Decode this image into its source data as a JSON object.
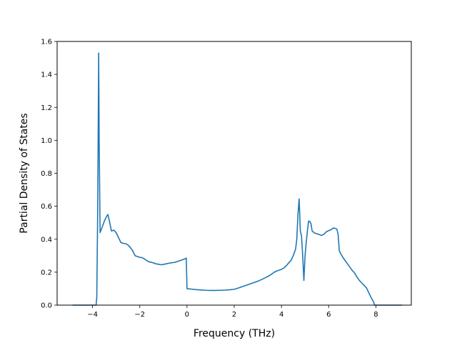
{
  "chart_data": {
    "type": "line",
    "xlabel": "Frequency (THz)",
    "ylabel": "Partial Density of States",
    "xlim": [
      -5.5,
      9.5
    ],
    "ylim": [
      0,
      1.6
    ],
    "xticks": [
      -4,
      -2,
      0,
      2,
      4,
      6,
      8
    ],
    "yticks": [
      0.0,
      0.2,
      0.4,
      0.6,
      0.8,
      1.0,
      1.2,
      1.4,
      1.6
    ],
    "xtick_labels": [
      "−4",
      "−2",
      "0",
      "2",
      "4",
      "6",
      "8"
    ],
    "ytick_labels": [
      "0.0",
      "0.2",
      "0.4",
      "0.6",
      "0.8",
      "1.0",
      "1.2",
      "1.4",
      "1.6"
    ],
    "grid": false,
    "series": [
      {
        "color": "#1f77b4",
        "x": [
          -4.85,
          -3.85,
          -3.82,
          -3.78,
          -3.74,
          -3.72,
          -3.68,
          -3.6,
          -3.5,
          -3.4,
          -3.35,
          -3.3,
          -3.2,
          -3.1,
          -3.0,
          -2.9,
          -2.8,
          -2.7,
          -2.6,
          -2.5,
          -2.4,
          -2.3,
          -2.2,
          -2.1,
          -2.0,
          -1.9,
          -1.8,
          -1.7,
          -1.6,
          -1.5,
          -1.4,
          -1.3,
          -1.2,
          -1.1,
          -1.0,
          -0.9,
          -0.8,
          -0.7,
          -0.6,
          -0.5,
          -0.4,
          -0.3,
          -0.2,
          -0.1,
          -0.03,
          0.0,
          0.2,
          0.4,
          0.6,
          0.8,
          1.0,
          1.2,
          1.4,
          1.6,
          1.8,
          2.0,
          2.2,
          2.4,
          2.6,
          2.8,
          3.0,
          3.2,
          3.4,
          3.5,
          3.6,
          3.7,
          3.8,
          3.9,
          4.0,
          4.1,
          4.2,
          4.3,
          4.4,
          4.5,
          4.6,
          4.65,
          4.7,
          4.75,
          4.8,
          4.85,
          4.9,
          4.95,
          5.0,
          5.05,
          5.1,
          5.15,
          5.2,
          5.25,
          5.3,
          5.4,
          5.5,
          5.6,
          5.7,
          5.8,
          5.9,
          6.0,
          6.1,
          6.2,
          6.3,
          6.35,
          6.4,
          6.45,
          6.5,
          6.6,
          6.7,
          6.8,
          6.9,
          7.0,
          7.1,
          7.2,
          7.3,
          7.4,
          7.5,
          7.6,
          7.7,
          7.8,
          7.9,
          7.95,
          8.0,
          8.5,
          9.1
        ],
        "y": [
          0.0,
          0.0,
          0.05,
          0.6,
          1.53,
          1.0,
          0.44,
          0.47,
          0.51,
          0.54,
          0.55,
          0.52,
          0.45,
          0.455,
          0.44,
          0.41,
          0.38,
          0.375,
          0.373,
          0.365,
          0.35,
          0.33,
          0.3,
          0.295,
          0.29,
          0.288,
          0.28,
          0.27,
          0.262,
          0.26,
          0.255,
          0.25,
          0.248,
          0.245,
          0.247,
          0.25,
          0.253,
          0.256,
          0.258,
          0.26,
          0.265,
          0.27,
          0.275,
          0.28,
          0.285,
          0.1,
          0.097,
          0.094,
          0.092,
          0.09,
          0.089,
          0.089,
          0.09,
          0.091,
          0.093,
          0.096,
          0.105,
          0.115,
          0.125,
          0.135,
          0.145,
          0.158,
          0.172,
          0.18,
          0.19,
          0.2,
          0.207,
          0.212,
          0.217,
          0.225,
          0.238,
          0.255,
          0.27,
          0.3,
          0.34,
          0.4,
          0.55,
          0.645,
          0.45,
          0.42,
          0.3,
          0.15,
          0.3,
          0.38,
          0.45,
          0.51,
          0.508,
          0.495,
          0.45,
          0.438,
          0.433,
          0.428,
          0.423,
          0.43,
          0.445,
          0.452,
          0.458,
          0.468,
          0.465,
          0.46,
          0.43,
          0.33,
          0.315,
          0.29,
          0.27,
          0.25,
          0.23,
          0.21,
          0.195,
          0.17,
          0.15,
          0.135,
          0.12,
          0.105,
          0.075,
          0.045,
          0.02,
          0.0,
          0.0,
          0.0,
          0.0
        ]
      }
    ]
  }
}
